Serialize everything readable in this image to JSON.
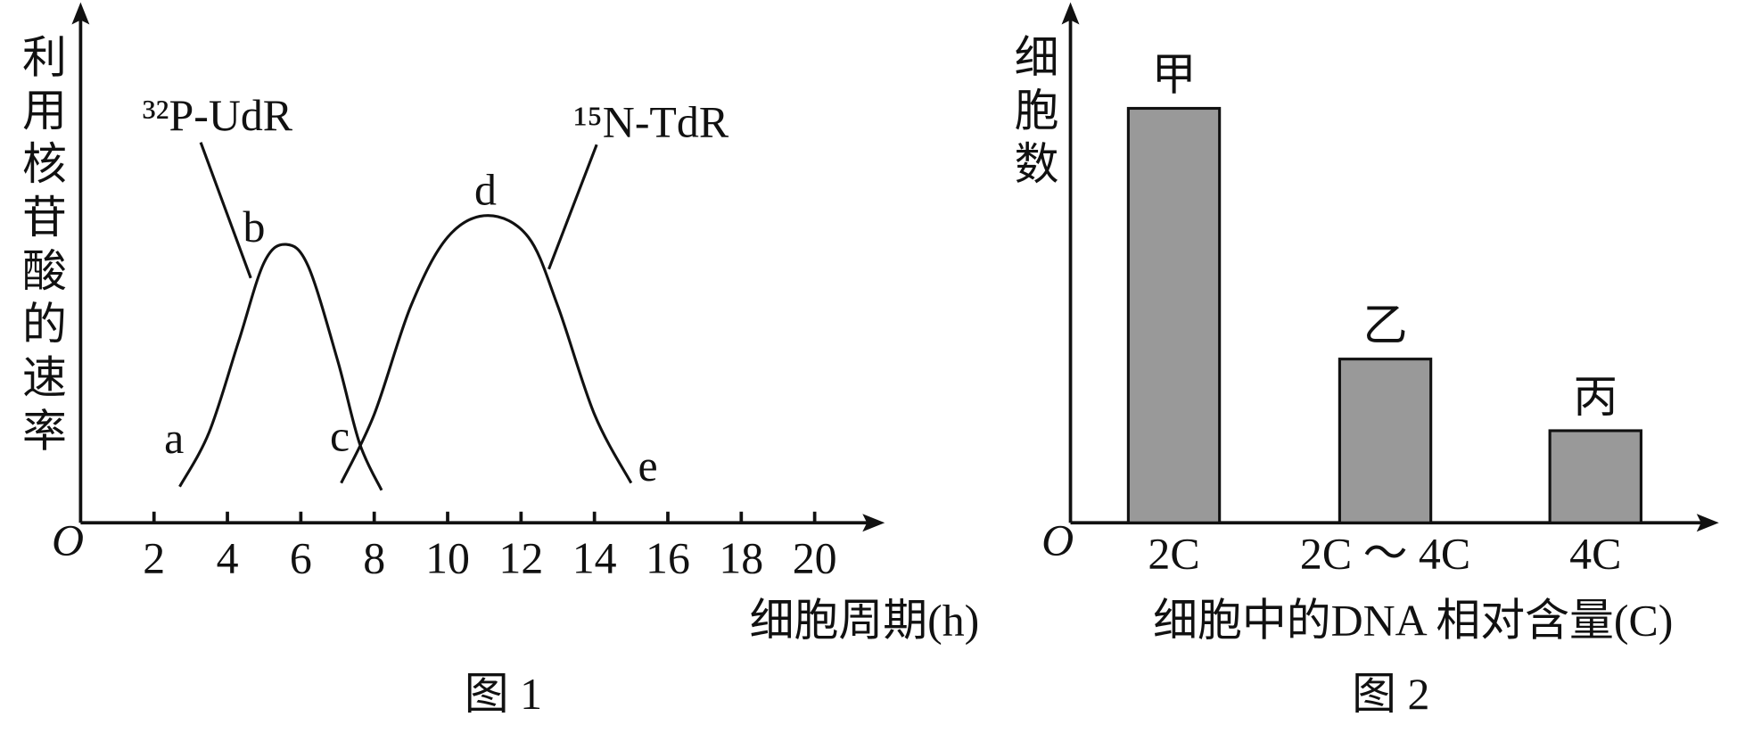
{
  "chart_data": [
    {
      "type": "line",
      "y_label": "利用核苷酸的速率",
      "x_label": "细胞周期(h)",
      "origin_label": "O",
      "caption": "图 1",
      "xlim": [
        0,
        22
      ],
      "xticks": [
        2,
        4,
        6,
        8,
        10,
        12,
        14,
        16,
        18,
        20
      ],
      "ylim": [
        0,
        14
      ],
      "series": [
        {
          "name": "³²P-UdR",
          "color": "#111111",
          "x": [
            2.7,
            3.5,
            4.3,
            5.0,
            5.6,
            6.2,
            7.0,
            7.6,
            8.2
          ],
          "values": [
            1.0,
            2.5,
            5.0,
            7.2,
            7.7,
            7.1,
            4.5,
            2.2,
            0.9
          ]
        },
        {
          "name": "¹⁵N-TdR",
          "color": "#111111",
          "x": [
            7.1,
            8.0,
            9.0,
            10.0,
            11.1,
            12.2,
            13.0,
            14.0,
            15.0
          ],
          "values": [
            1.1,
            3.0,
            6.0,
            7.9,
            8.5,
            7.9,
            6.0,
            3.0,
            1.1
          ]
        }
      ],
      "annotations": [
        "a",
        "b",
        "c",
        "d",
        "e"
      ]
    },
    {
      "type": "bar",
      "y_label": "细胞数",
      "x_label": "细胞中的DNA 相对含量(C)",
      "origin_label": "O",
      "caption": "图 2",
      "categories": [
        "2C",
        "2C ～ 4C",
        "4C"
      ],
      "bar_labels": [
        "甲",
        "乙",
        "丙"
      ],
      "values": [
        8.1,
        3.2,
        1.8
      ],
      "color": "#999999",
      "ylim": [
        0,
        10
      ]
    }
  ]
}
